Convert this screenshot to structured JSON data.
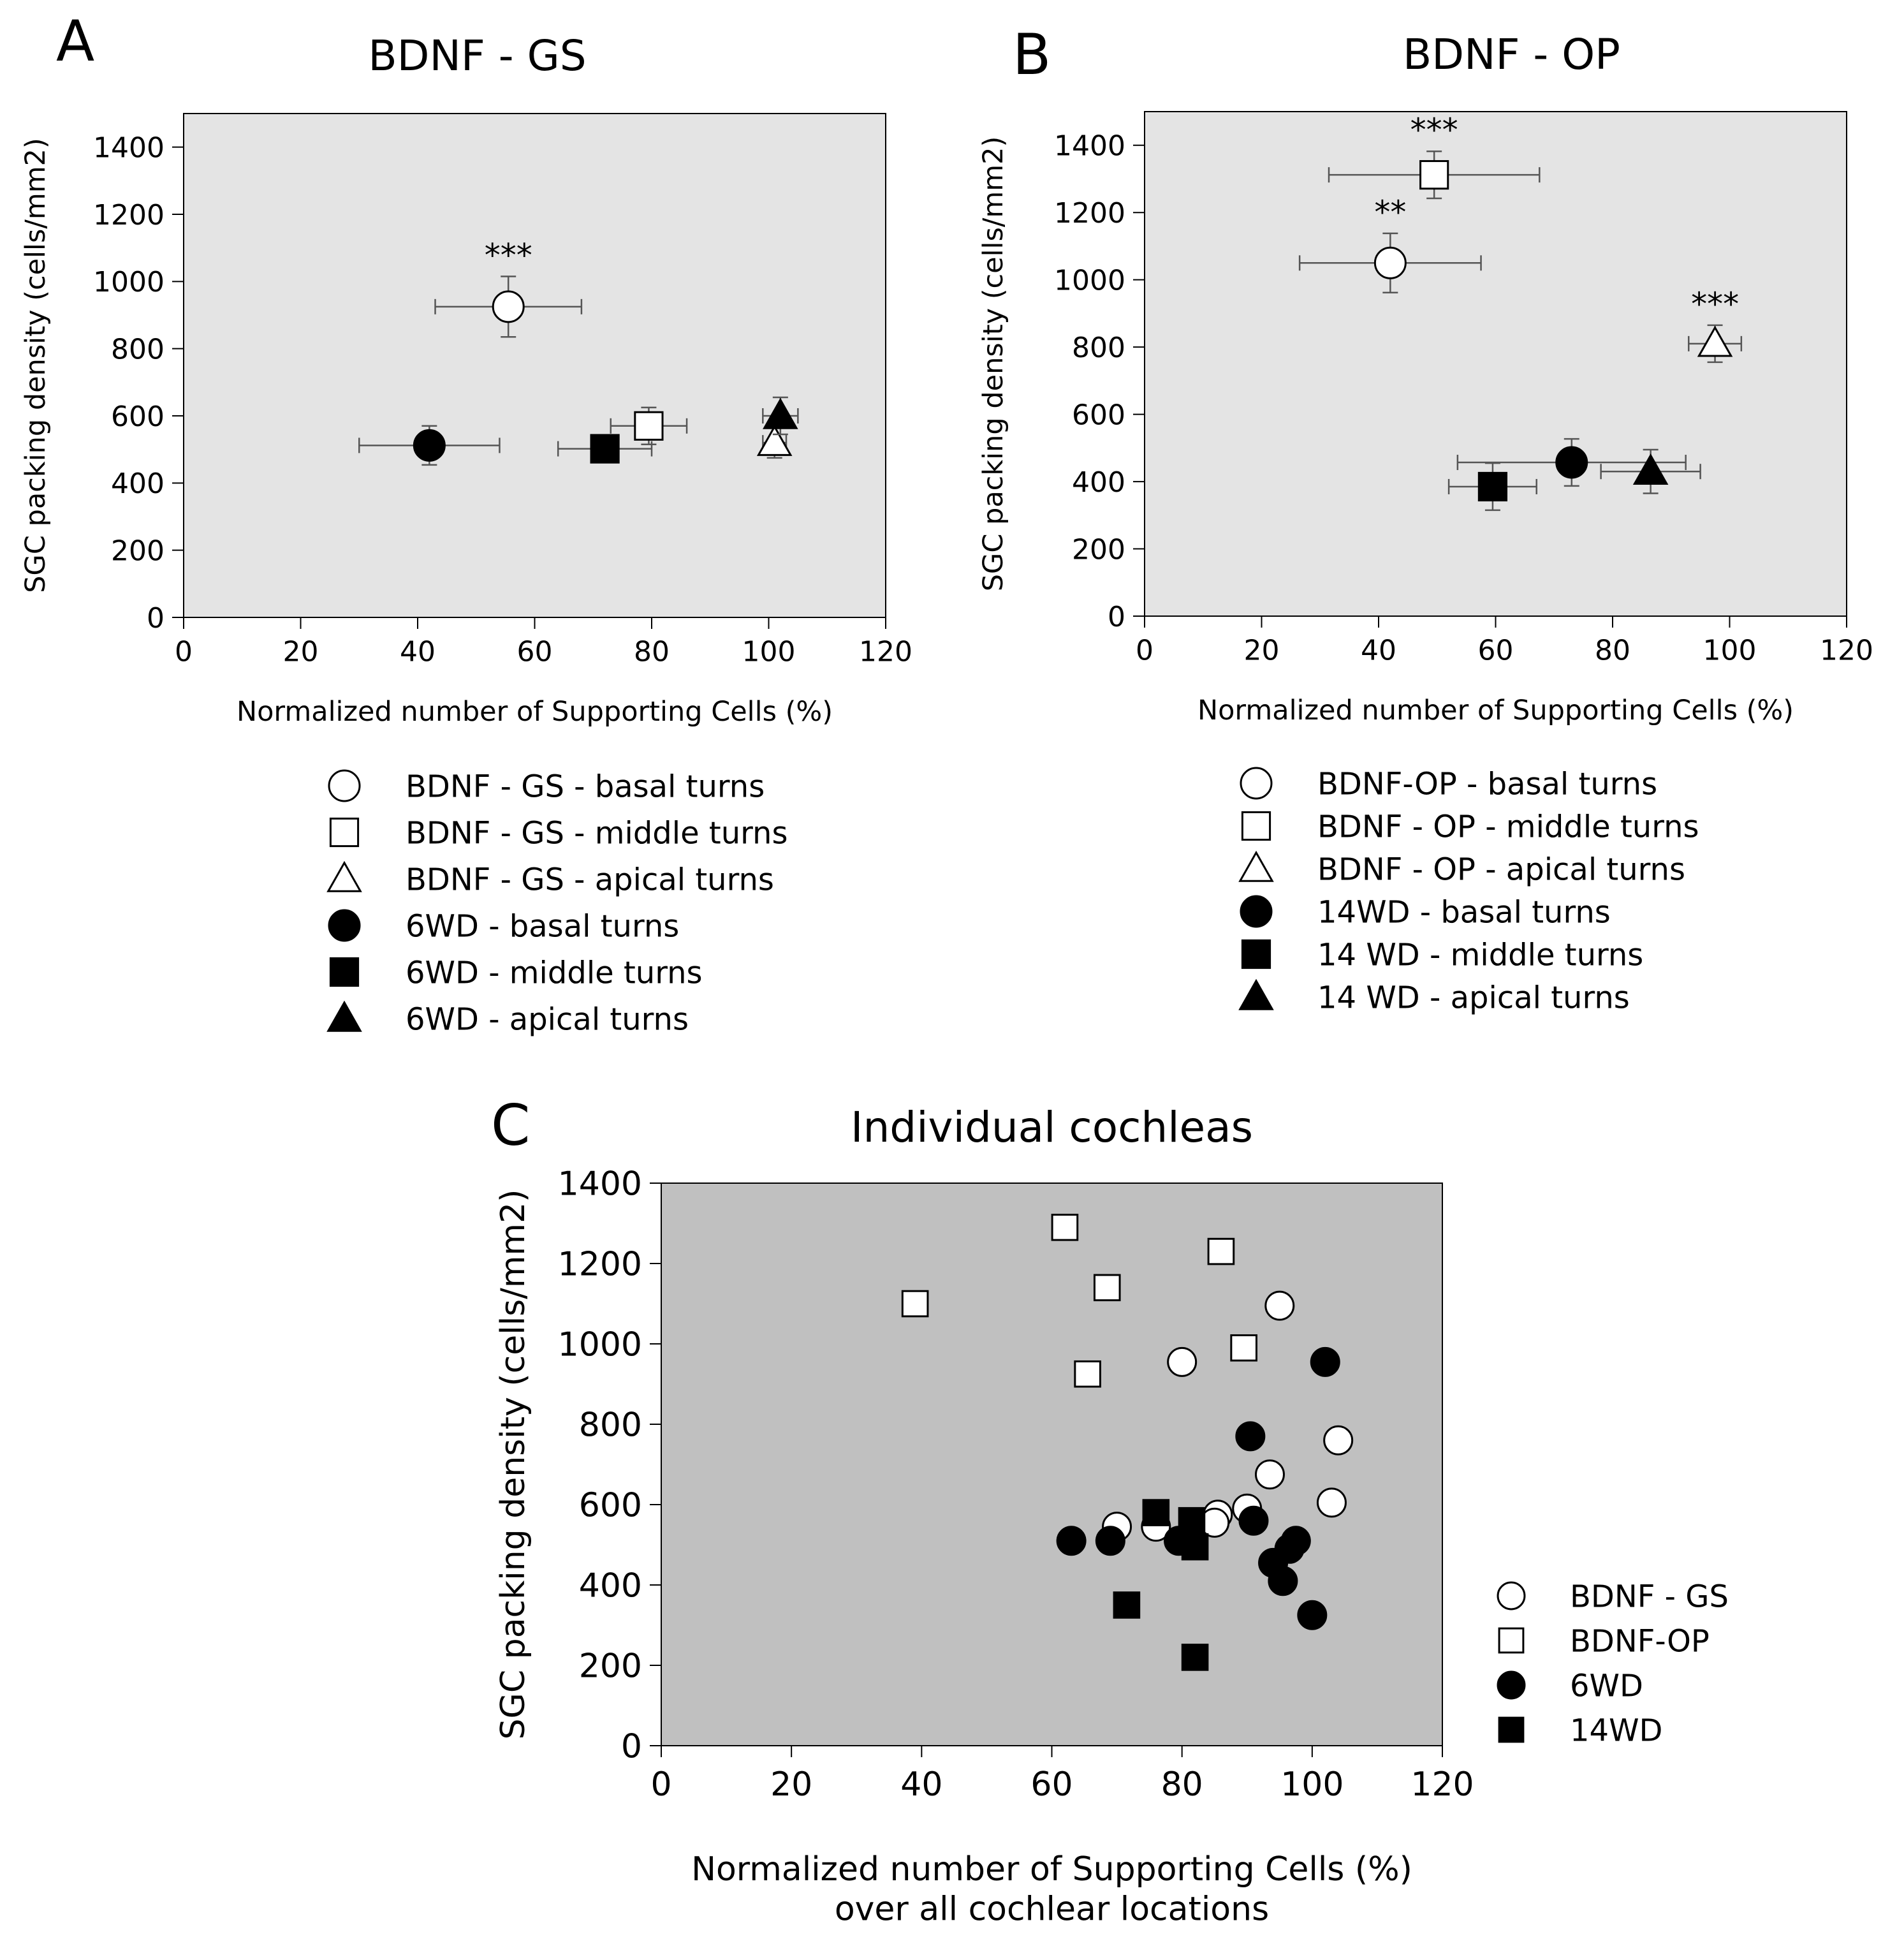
{
  "chart_data": [
    {
      "panel": "A",
      "type": "scatter",
      "title": "BDNF - GS",
      "xlabel": "Normalized number of Supporting Cells (%)",
      "ylabel": "SGC packing density  (cells/mm2)",
      "xlim": [
        0,
        120
      ],
      "ylim": [
        0,
        1500
      ],
      "xticks": [
        0,
        20,
        40,
        60,
        80,
        100,
        120
      ],
      "yticks": [
        0,
        200,
        400,
        600,
        800,
        1000,
        1200,
        1400
      ],
      "background": "#e4e4e4",
      "series": [
        {
          "name": "BDNF - GS - basal turns",
          "marker": "circle",
          "filled": false,
          "x": 55.5,
          "y": 925,
          "xerr": 12.5,
          "yerr": 90,
          "annotation": "***"
        },
        {
          "name": "BDNF - GS - middle turns",
          "marker": "square",
          "filled": false,
          "x": 79.5,
          "y": 570,
          "xerr": 6.5,
          "yerr": 55
        },
        {
          "name": "BDNF - GS - apical turns",
          "marker": "triangle",
          "filled": false,
          "x": 101,
          "y": 520,
          "xerr": 2,
          "yerr": 45
        },
        {
          "name": "6WD - basal turns",
          "marker": "circle",
          "filled": true,
          "x": 42,
          "y": 512,
          "xerr": 12,
          "yerr": 58
        },
        {
          "name": "6WD - middle turns",
          "marker": "square",
          "filled": true,
          "x": 72,
          "y": 502,
          "xerr": 8,
          "yerr": 40
        },
        {
          "name": "6WD - apical turns",
          "marker": "triangle",
          "filled": true,
          "x": 102,
          "y": 600,
          "xerr": 3,
          "yerr": 55
        }
      ]
    },
    {
      "panel": "B",
      "type": "scatter",
      "title": "BDNF - OP",
      "xlabel": "Normalized number of Supporting Cells (%)",
      "ylabel": "SGC packing density  (cells/mm2)",
      "xlim": [
        0,
        120
      ],
      "ylim": [
        0,
        1500
      ],
      "xticks": [
        0,
        20,
        40,
        60,
        80,
        100,
        120
      ],
      "yticks": [
        0,
        200,
        400,
        600,
        800,
        1000,
        1200,
        1400
      ],
      "background": "#e4e4e4",
      "series": [
        {
          "name": "BDNF-OP - basal turns",
          "marker": "circle",
          "filled": false,
          "x": 42,
          "y": 1050,
          "xerr": 15.5,
          "yerr": 88,
          "annotation": "**"
        },
        {
          "name": "BDNF - OP - middle turns",
          "marker": "square",
          "filled": false,
          "x": 49.5,
          "y": 1312,
          "xerr": 18,
          "yerr": 70,
          "annotation": "***"
        },
        {
          "name": "BDNF - OP - apical turns",
          "marker": "triangle",
          "filled": false,
          "x": 97.5,
          "y": 810,
          "xerr": 4.5,
          "yerr": 55,
          "annotation": "***"
        },
        {
          "name": "14WD - basal turns",
          "marker": "circle",
          "filled": true,
          "x": 73,
          "y": 457,
          "xerr": 19.5,
          "yerr": 70
        },
        {
          "name": "14 WD - middle turns",
          "marker": "square",
          "filled": true,
          "x": 59.5,
          "y": 385,
          "xerr": 7.5,
          "yerr": 70
        },
        {
          "name": "14 WD - apical turns",
          "marker": "triangle",
          "filled": true,
          "x": 86.5,
          "y": 430,
          "xerr": 8.5,
          "yerr": 65
        }
      ]
    },
    {
      "panel": "C",
      "type": "scatter",
      "title": "Individual cochleas",
      "xlabel": "Normalized number of Supporting Cells (%)",
      "xlabel2": "over all cochlear locations",
      "ylabel": "SGC packing density (cells/mm2)",
      "xlim": [
        0,
        120
      ],
      "ylim": [
        0,
        1400
      ],
      "xticks": [
        0,
        20,
        40,
        60,
        80,
        100,
        120
      ],
      "yticks": [
        0,
        200,
        400,
        600,
        800,
        1000,
        1200,
        1400
      ],
      "background": "#c0c0c0",
      "series": [
        {
          "name": "BDNF - GS",
          "marker": "circle",
          "filled": false,
          "x": [
            95,
            80,
            104,
            93.5,
            103,
            90,
            85.5,
            85,
            70,
            76
          ],
          "y": [
            1095,
            955,
            760,
            675,
            605,
            590,
            575,
            555,
            545,
            545
          ]
        },
        {
          "name": "BDNF-OP",
          "marker": "square",
          "filled": false,
          "x": [
            62,
            86,
            39,
            68.5,
            65.5,
            89.5
          ],
          "y": [
            1290,
            1230,
            1100,
            1140,
            925,
            990
          ]
        },
        {
          "name": "6WD",
          "marker": "circle",
          "filled": true,
          "x": [
            102,
            90.5,
            91,
            63,
            69,
            79.5,
            94,
            96.5,
            97.5,
            95.5,
            100
          ],
          "y": [
            955,
            770,
            560,
            510,
            510,
            510,
            455,
            490,
            510,
            410,
            325
          ]
        },
        {
          "name": "14WD",
          "marker": "square",
          "filled": true,
          "x": [
            76,
            81.5,
            82,
            71.5,
            82
          ],
          "y": [
            580,
            560,
            495,
            350,
            220
          ]
        }
      ]
    }
  ],
  "panel_labels": {
    "A": "A",
    "B": "B",
    "C": "C"
  }
}
